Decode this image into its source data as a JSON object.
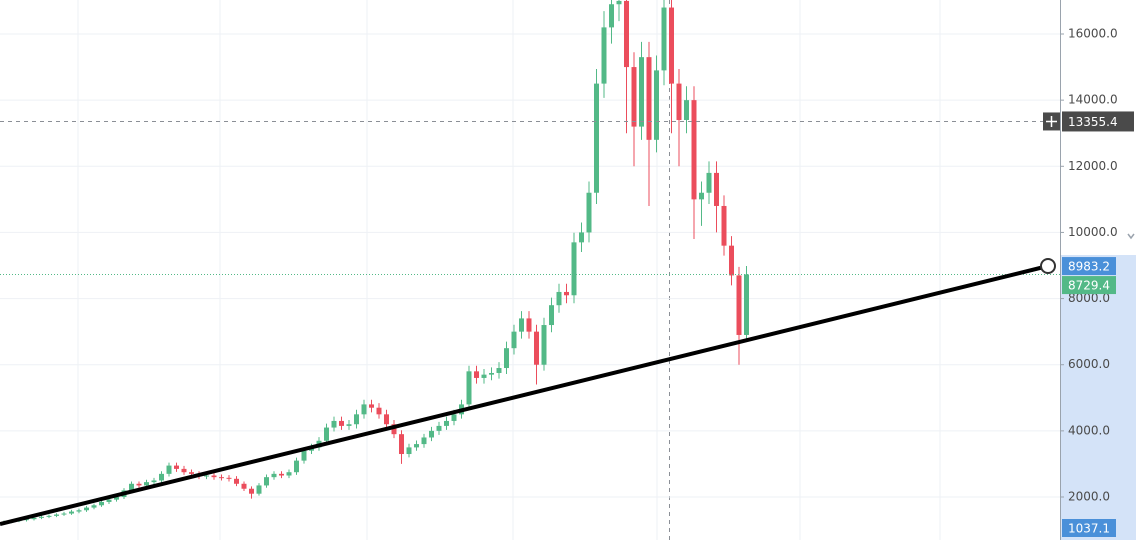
{
  "chart_data": {
    "type": "candlestick",
    "ylim": [
      700,
      17028
    ],
    "yticks": [
      {
        "value": 2000,
        "label": "2000.0"
      },
      {
        "value": 4000,
        "label": "4000.0"
      },
      {
        "value": 6000,
        "label": "6000.0"
      },
      {
        "value": 8000,
        "label": "8000.0"
      },
      {
        "value": 10000,
        "label": "10000.0"
      },
      {
        "value": 12000,
        "label": "12000.0"
      },
      {
        "value": 14000,
        "label": "14000.0"
      },
      {
        "value": 16000,
        "label": "16000.0"
      }
    ],
    "grid": true,
    "up_color": "#53b987",
    "down_color": "#eb4d5c",
    "series": {
      "open": [
        1220,
        1250,
        1280,
        1300,
        1330,
        1370,
        1400,
        1430,
        1470,
        1500,
        1560,
        1600,
        1680,
        1750,
        1850,
        1920,
        2000,
        2200,
        2400,
        2350,
        2450,
        2500,
        2700,
        2950,
        2850,
        2750,
        2700,
        2620,
        2650,
        2600,
        2580,
        2550,
        2400,
        2250,
        2100,
        2350,
        2600,
        2700,
        2650,
        2750,
        3100,
        3400,
        3500,
        3700,
        4100,
        4300,
        4150,
        4200,
        4500,
        4800,
        4700,
        4500,
        4200,
        3900,
        3300,
        3500,
        3600,
        3800,
        4000,
        4150,
        4300,
        4500,
        4800,
        5800,
        5600,
        5700,
        5750,
        5900,
        6500,
        7000,
        7400,
        7000,
        6000,
        7200,
        7800,
        8200,
        8100,
        9700,
        10000,
        11200,
        14500,
        16200,
        16900,
        17000,
        15000,
        13200,
        15300,
        12800,
        14900,
        16800,
        14500,
        13400,
        14000,
        11000,
        11200,
        11800,
        10800,
        9600,
        8700,
        6900
      ],
      "high": [
        1290,
        1320,
        1340,
        1370,
        1410,
        1440,
        1470,
        1510,
        1550,
        1610,
        1650,
        1730,
        1800,
        1910,
        1980,
        2060,
        2270,
        2470,
        2470,
        2520,
        2580,
        2780,
        3040,
        3040,
        2940,
        2830,
        2780,
        2730,
        2730,
        2680,
        2660,
        2630,
        2470,
        2320,
        2420,
        2680,
        2780,
        2780,
        2830,
        3190,
        3500,
        3610,
        3810,
        4220,
        4430,
        4430,
        4330,
        4640,
        4940,
        4940,
        4840,
        4640,
        4330,
        4020,
        3610,
        3710,
        3910,
        4120,
        4270,
        4430,
        4640,
        4940,
        5970,
        5970,
        5870,
        5920,
        6080,
        6700,
        7210,
        7620,
        7620,
        7210,
        7420,
        8030,
        8450,
        8450,
        9990,
        10300,
        11540,
        14940,
        16690,
        17410,
        17510,
        17510,
        15450,
        15760,
        15760,
        15350,
        17300,
        17300,
        14940,
        14420,
        14420,
        11540,
        12150,
        12150,
        11120,
        9890,
        8960,
        8983.2
      ],
      "low": [
        1180,
        1210,
        1240,
        1260,
        1290,
        1330,
        1360,
        1390,
        1430,
        1460,
        1510,
        1550,
        1630,
        1700,
        1790,
        1860,
        1940,
        2130,
        2280,
        2280,
        2380,
        2430,
        2620,
        2760,
        2670,
        2620,
        2540,
        2540,
        2520,
        2500,
        2470,
        2330,
        2180,
        1950,
        2040,
        2280,
        2520,
        2570,
        2570,
        2670,
        3010,
        3300,
        3400,
        3590,
        3980,
        4030,
        4030,
        4070,
        4370,
        4560,
        4370,
        4070,
        3780,
        3000,
        3200,
        3400,
        3490,
        3690,
        3880,
        4030,
        4170,
        4370,
        4660,
        5430,
        5430,
        5530,
        5580,
        5720,
        6310,
        6790,
        6790,
        5400,
        5820,
        6980,
        7570,
        7860,
        7860,
        9410,
        9700,
        10860,
        14070,
        15710,
        16390,
        13000,
        12000,
        12800,
        10800,
        12420,
        14450,
        13000,
        12000,
        13000,
        9800,
        10200,
        10860,
        10000,
        9300,
        8400,
        6000,
        6700
      ],
      "close": [
        1250,
        1280,
        1300,
        1330,
        1370,
        1400,
        1430,
        1470,
        1500,
        1560,
        1600,
        1680,
        1750,
        1850,
        1920,
        2000,
        2200,
        2400,
        2350,
        2450,
        2500,
        2700,
        2950,
        2850,
        2750,
        2700,
        2620,
        2650,
        2600,
        2580,
        2550,
        2400,
        2250,
        2100,
        2350,
        2600,
        2700,
        2650,
        2750,
        3100,
        3400,
        3500,
        3700,
        4100,
        4300,
        4150,
        4200,
        4500,
        4800,
        4700,
        4500,
        4200,
        3900,
        3300,
        3500,
        3600,
        3800,
        4000,
        4150,
        4300,
        4500,
        4800,
        5800,
        5600,
        5700,
        5750,
        5900,
        6500,
        7000,
        7400,
        7000,
        6000,
        7200,
        7800,
        8200,
        8100,
        9700,
        10000,
        11200,
        14500,
        16200,
        16900,
        17000,
        15000,
        13200,
        15300,
        12800,
        14900,
        16800,
        14500,
        13400,
        14000,
        11000,
        11200,
        11800,
        10800,
        9600,
        8700,
        6900,
        8729.4
      ]
    },
    "crosshair_price": 13355.4,
    "price_labels": [
      {
        "value": 8983.2,
        "color": "#4a90d9"
      },
      {
        "value": 8729.4,
        "color": "#53b987"
      }
    ],
    "volume_label": 1037.1
  }
}
